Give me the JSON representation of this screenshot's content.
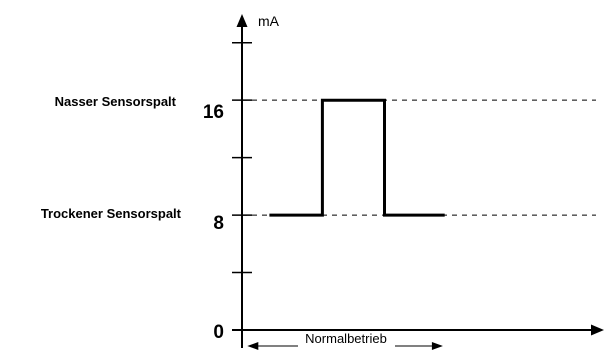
{
  "chart_data": {
    "type": "line",
    "unit_label": "mA",
    "y_ticks": [
      {
        "value": 0,
        "label": "0"
      },
      {
        "value": 8,
        "label": "8"
      },
      {
        "value": 16,
        "label": "16"
      }
    ],
    "minor_ticks": [
      4,
      12,
      20
    ],
    "reference_lines": [
      {
        "value": 16,
        "label": "Nasser Sensorspalt"
      },
      {
        "value": 8,
        "label": "Trockener Sensorspalt"
      }
    ],
    "series": [
      {
        "x": [
          0.75,
          2.2,
          2.2,
          3.9,
          3.9,
          5.55
        ],
        "y": [
          8,
          8,
          16,
          16,
          8,
          8
        ]
      }
    ],
    "xlim": [
      0,
      9.8
    ],
    "ylim": [
      0,
      22
    ],
    "range_annotation": {
      "label": "Normalbetrieb",
      "from": 0.2,
      "to": 5.5
    },
    "colors": {
      "signal": "#000000",
      "reference": "#000000",
      "axes": "#000000"
    }
  }
}
